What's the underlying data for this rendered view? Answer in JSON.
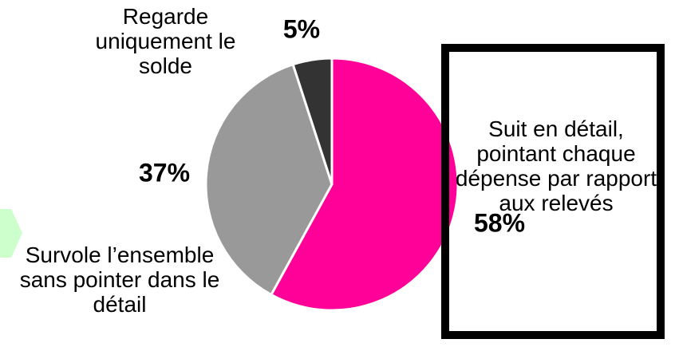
{
  "chart_data": {
    "type": "pie",
    "categories": [
      "Suit en détail, pointant chaque dépense par rapport aux relevés",
      "Survole l’ensemble sans pointer dans le détail",
      "Regarde uniquement le solde"
    ],
    "values": [
      58,
      37,
      5
    ],
    "value_labels": [
      "58%",
      "37%",
      "5%"
    ],
    "colors": [
      "#ff0099",
      "#999999",
      "#333333"
    ]
  }
}
